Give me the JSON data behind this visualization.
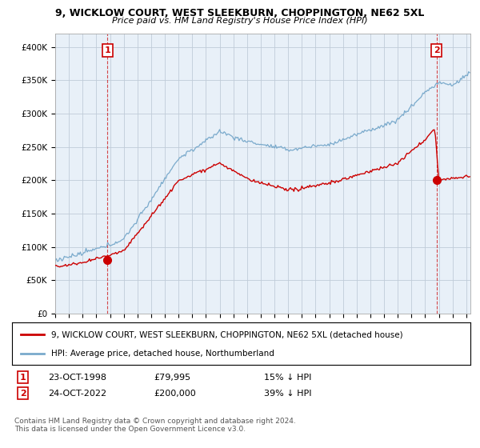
{
  "title": "9, WICKLOW COURT, WEST SLEEKBURN, CHOPPINGTON, NE62 5XL",
  "subtitle": "Price paid vs. HM Land Registry's House Price Index (HPI)",
  "ylim": [
    0,
    420000
  ],
  "yticks": [
    0,
    50000,
    100000,
    150000,
    200000,
    250000,
    300000,
    350000,
    400000
  ],
  "ytick_labels": [
    "£0",
    "£50K",
    "£100K",
    "£150K",
    "£200K",
    "£250K",
    "£300K",
    "£350K",
    "£400K"
  ],
  "background_color": "#ffffff",
  "chart_bg_color": "#e8f0f8",
  "grid_color": "#c0ccd8",
  "sale1_date": 1998.82,
  "sale1_price": 79995,
  "sale2_date": 2022.82,
  "sale2_price": 200000,
  "sale_color": "#cc0000",
  "hpi_color": "#7aaacc",
  "annotation1_date": "23-OCT-1998",
  "annotation1_price": "£79,995",
  "annotation1_hpi": "15% ↓ HPI",
  "annotation2_date": "24-OCT-2022",
  "annotation2_price": "£200,000",
  "annotation2_hpi": "39% ↓ HPI",
  "legend_property": "9, WICKLOW COURT, WEST SLEEKBURN, CHOPPINGTON, NE62 5XL (detached house)",
  "legend_hpi": "HPI: Average price, detached house, Northumberland",
  "footer": "Contains HM Land Registry data © Crown copyright and database right 2024.\nThis data is licensed under the Open Government Licence v3.0.",
  "xmin": 1995.0,
  "xmax": 2025.3
}
